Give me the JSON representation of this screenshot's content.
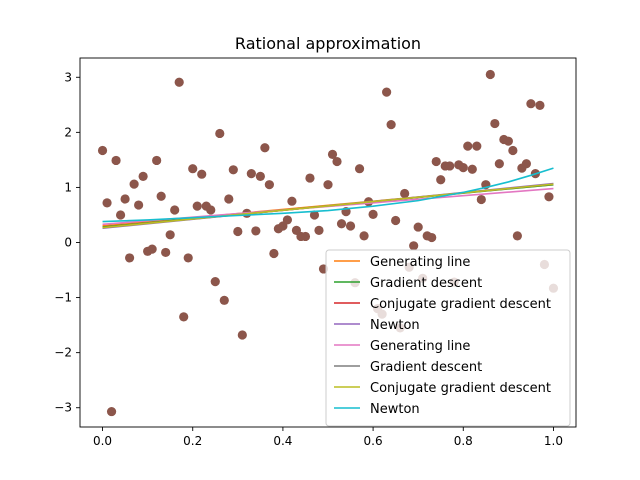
{
  "chart_data": {
    "type": "scatter",
    "title": "Rational approximation",
    "xlabel": "",
    "ylabel": "",
    "xlim": [
      -0.05,
      1.05
    ],
    "ylim": [
      -3.35,
      3.35
    ],
    "x_ticks": [
      0.0,
      0.2,
      0.4,
      0.6,
      0.8,
      1.0
    ],
    "x_tick_labels": [
      "0.0",
      "0.2",
      "0.4",
      "0.6",
      "0.8",
      "1.0"
    ],
    "y_ticks": [
      -3,
      -2,
      -1,
      0,
      1,
      2,
      3
    ],
    "y_tick_labels": [
      "−3",
      "−2",
      "−1",
      "0",
      "1",
      "2",
      "3"
    ],
    "grid": false,
    "legend_position": "lower-right",
    "points_color": "#8c564b",
    "points": [
      [
        0.0,
        1.67
      ],
      [
        0.01,
        0.72
      ],
      [
        0.02,
        -3.07
      ],
      [
        0.03,
        1.49
      ],
      [
        0.04,
        0.5
      ],
      [
        0.05,
        0.79
      ],
      [
        0.06,
        -0.28
      ],
      [
        0.07,
        1.06
      ],
      [
        0.08,
        0.68
      ],
      [
        0.09,
        1.2
      ],
      [
        0.1,
        -0.16
      ],
      [
        0.11,
        -0.12
      ],
      [
        0.12,
        1.49
      ],
      [
        0.13,
        0.84
      ],
      [
        0.14,
        -0.18
      ],
      [
        0.15,
        0.14
      ],
      [
        0.16,
        0.59
      ],
      [
        0.17,
        2.91
      ],
      [
        0.18,
        -1.35
      ],
      [
        0.19,
        -0.28
      ],
      [
        0.2,
        1.34
      ],
      [
        0.21,
        0.66
      ],
      [
        0.22,
        1.24
      ],
      [
        0.23,
        0.66
      ],
      [
        0.24,
        0.59
      ],
      [
        0.25,
        -0.71
      ],
      [
        0.26,
        1.98
      ],
      [
        0.27,
        -1.05
      ],
      [
        0.28,
        0.79
      ],
      [
        0.29,
        1.32
      ],
      [
        0.3,
        0.2
      ],
      [
        0.31,
        -1.68
      ],
      [
        0.32,
        0.53
      ],
      [
        0.33,
        1.25
      ],
      [
        0.34,
        0.21
      ],
      [
        0.35,
        1.2
      ],
      [
        0.36,
        1.72
      ],
      [
        0.37,
        1.05
      ],
      [
        0.38,
        -0.2
      ],
      [
        0.39,
        0.25
      ],
      [
        0.4,
        0.3
      ],
      [
        0.41,
        0.41
      ],
      [
        0.42,
        0.75
      ],
      [
        0.43,
        0.22
      ],
      [
        0.44,
        0.11
      ],
      [
        0.45,
        0.11
      ],
      [
        0.46,
        1.17
      ],
      [
        0.47,
        0.5
      ],
      [
        0.48,
        0.22
      ],
      [
        0.49,
        -0.48
      ],
      [
        0.5,
        1.05
      ],
      [
        0.51,
        1.6
      ],
      [
        0.52,
        1.47
      ],
      [
        0.53,
        0.34
      ],
      [
        0.54,
        0.56
      ],
      [
        0.55,
        0.3
      ],
      [
        0.56,
        -0.73
      ],
      [
        0.57,
        1.34
      ],
      [
        0.58,
        0.12
      ],
      [
        0.59,
        0.74
      ],
      [
        0.6,
        0.51
      ],
      [
        0.61,
        -1.2
      ],
      [
        0.62,
        -1.3
      ],
      [
        0.63,
        2.73
      ],
      [
        0.64,
        2.14
      ],
      [
        0.65,
        0.4
      ],
      [
        0.66,
        -1.55
      ],
      [
        0.67,
        0.89
      ],
      [
        0.68,
        -0.45
      ],
      [
        0.69,
        -0.06
      ],
      [
        0.7,
        0.28
      ],
      [
        0.71,
        -0.65
      ],
      [
        0.72,
        0.12
      ],
      [
        0.73,
        0.09
      ],
      [
        0.74,
        1.47
      ],
      [
        0.75,
        1.14
      ],
      [
        0.76,
        1.39
      ],
      [
        0.77,
        1.39
      ],
      [
        0.78,
        -0.72
      ],
      [
        0.79,
        1.41
      ],
      [
        0.8,
        1.36
      ],
      [
        0.81,
        1.75
      ],
      [
        0.82,
        1.33
      ],
      [
        0.83,
        1.75
      ],
      [
        0.84,
        0.78
      ],
      [
        0.85,
        1.05
      ],
      [
        0.86,
        3.05
      ],
      [
        0.87,
        2.16
      ],
      [
        0.88,
        1.43
      ],
      [
        0.89,
        1.87
      ],
      [
        0.9,
        1.84
      ],
      [
        0.91,
        1.67
      ],
      [
        0.92,
        0.12
      ],
      [
        0.93,
        1.35
      ],
      [
        0.94,
        1.43
      ],
      [
        0.95,
        2.52
      ],
      [
        0.96,
        1.25
      ],
      [
        0.97,
        2.49
      ],
      [
        0.98,
        -0.4
      ],
      [
        0.99,
        0.83
      ],
      [
        1.0,
        -0.83
      ]
    ],
    "series": [
      {
        "name": "Generating line",
        "color": "#ff7f0e",
        "x": [
          0.0,
          1.0
        ],
        "y": [
          0.3,
          1.05
        ]
      },
      {
        "name": "Gradient descent",
        "color": "#2ca02c",
        "x": [
          0.0,
          1.0
        ],
        "y": [
          0.28,
          1.05
        ]
      },
      {
        "name": "Conjugate gradient descent",
        "color": "#d62728",
        "x": [
          0.0,
          1.0
        ],
        "y": [
          0.27,
          1.06
        ]
      },
      {
        "name": "Newton",
        "color": "#9467bd",
        "x": [
          0.0,
          1.0
        ],
        "y": [
          0.26,
          1.07
        ]
      },
      {
        "name": "Generating line",
        "color": "#e377c2",
        "x": [
          0.0,
          1.0
        ],
        "y": [
          0.33,
          0.98
        ]
      },
      {
        "name": "Gradient descent",
        "color": "#7f7f7f",
        "x": [
          0.0,
          1.0
        ],
        "y": [
          0.27,
          1.06
        ]
      },
      {
        "name": "Conjugate gradient descent",
        "color": "#bcbd22",
        "x": [
          0.0,
          1.0
        ],
        "y": [
          0.27,
          1.06
        ]
      },
      {
        "name": "Newton",
        "color": "#17becf",
        "x": [
          0.0,
          0.1,
          0.2,
          0.3,
          0.4,
          0.5,
          0.6,
          0.7,
          0.8,
          0.85,
          0.9,
          0.95,
          1.0
        ],
        "y": [
          0.38,
          0.41,
          0.45,
          0.49,
          0.53,
          0.58,
          0.66,
          0.76,
          0.91,
          1.0,
          1.1,
          1.22,
          1.35
        ]
      }
    ]
  }
}
